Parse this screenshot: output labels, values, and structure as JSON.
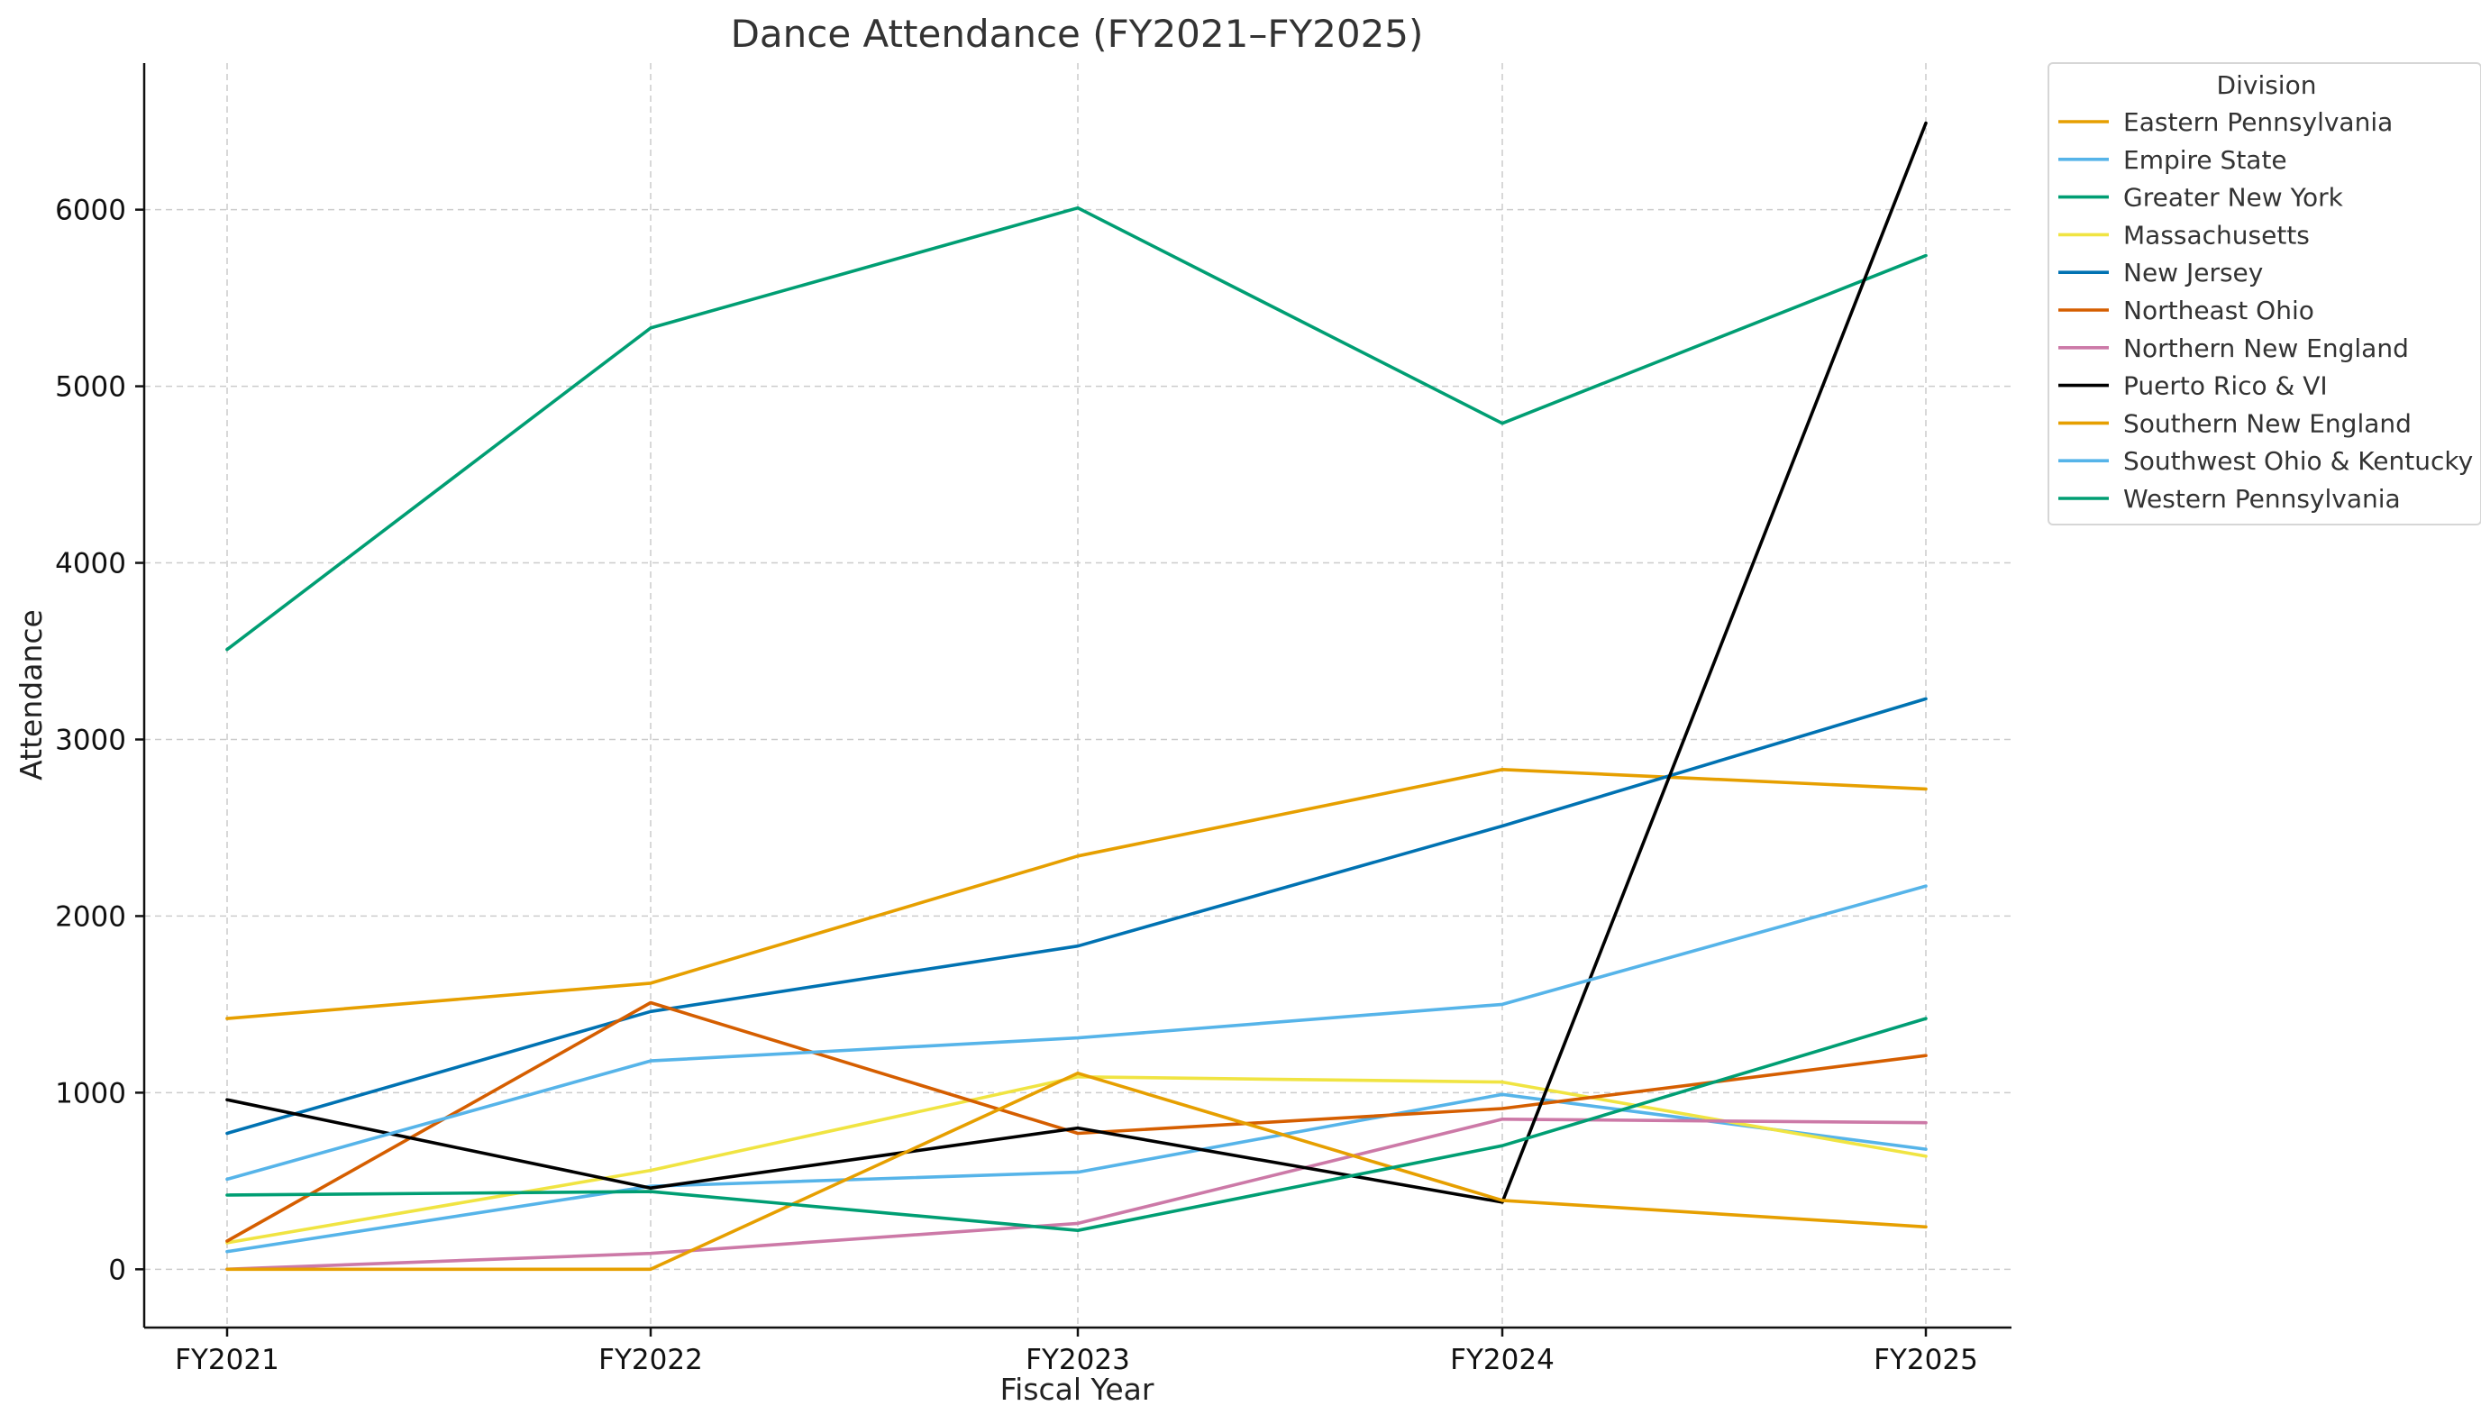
{
  "chart_data": {
    "type": "line",
    "title": "Dance Attendance (FY2021–FY2025)",
    "xlabel": "Fiscal Year",
    "ylabel": "Attendance",
    "categories": [
      "FY2021",
      "FY2022",
      "FY2023",
      "FY2024",
      "FY2025"
    ],
    "ylim": [
      -330,
      6830
    ],
    "yticks": [
      0,
      1000,
      2000,
      3000,
      4000,
      5000,
      6000
    ],
    "grid": true,
    "legend": {
      "title": "Division",
      "placement": "upper-right-outside"
    },
    "series": [
      {
        "name": "Eastern Pennsylvania",
        "color": "#E69F00",
        "values": [
          1420,
          1620,
          2340,
          2830,
          2720
        ]
      },
      {
        "name": "Empire State",
        "color": "#56B4E9",
        "values": [
          100,
          470,
          550,
          990,
          680
        ]
      },
      {
        "name": "Greater New York",
        "color": "#009E73",
        "values": [
          3510,
          5330,
          6010,
          4790,
          5740
        ]
      },
      {
        "name": "Massachusetts",
        "color": "#F0E442",
        "values": [
          150,
          560,
          1090,
          1060,
          640
        ]
      },
      {
        "name": "New Jersey",
        "color": "#0072B2",
        "values": [
          770,
          1460,
          1830,
          2510,
          3230
        ]
      },
      {
        "name": "Northeast Ohio",
        "color": "#D55E00",
        "values": [
          160,
          1510,
          770,
          910,
          1210
        ]
      },
      {
        "name": "Northern New England",
        "color": "#CC79A7",
        "values": [
          0,
          90,
          260,
          850,
          830
        ]
      },
      {
        "name": "Puerto Rico & VI",
        "color": "#000000",
        "values": [
          960,
          460,
          800,
          380,
          6490
        ]
      },
      {
        "name": "Southern New England",
        "color": "#E69F00",
        "values": [
          0,
          0,
          1110,
          390,
          240
        ]
      },
      {
        "name": "Southwest Ohio & Kentucky",
        "color": "#56B4E9",
        "values": [
          510,
          1180,
          1310,
          1500,
          2170
        ]
      },
      {
        "name": "Western Pennsylvania",
        "color": "#009E73",
        "values": [
          420,
          440,
          220,
          700,
          1420
        ]
      }
    ]
  }
}
